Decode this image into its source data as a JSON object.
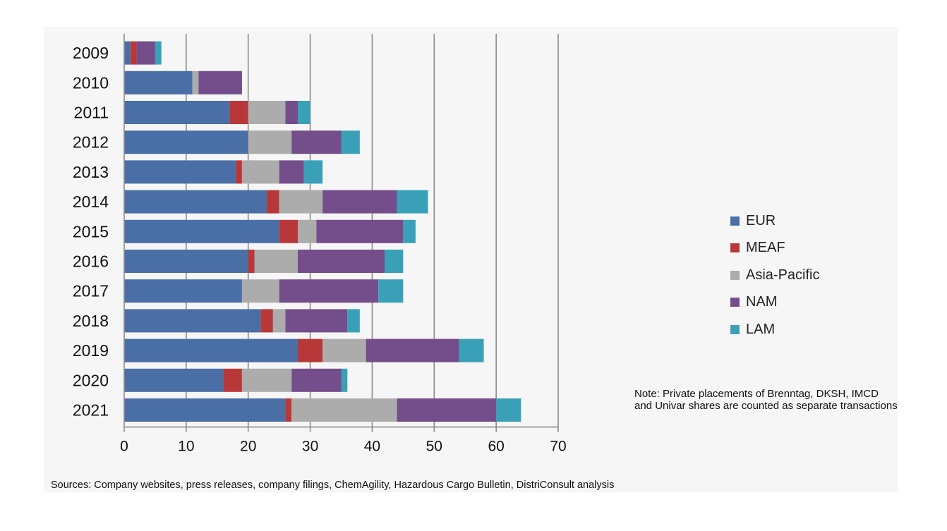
{
  "chart_data": {
    "type": "bar",
    "orientation": "horizontal",
    "stacked": true,
    "categories": [
      "2009",
      "2010",
      "2011",
      "2012",
      "2013",
      "2014",
      "2015",
      "2016",
      "2017",
      "2018",
      "2019",
      "2020",
      "2021"
    ],
    "series": [
      {
        "name": "EUR",
        "color": "#4a6fa6",
        "values": [
          1,
          11,
          17,
          20,
          18,
          23,
          25,
          20,
          19,
          22,
          28,
          16,
          26
        ]
      },
      {
        "name": "MEAF",
        "color": "#b8383a",
        "values": [
          1,
          0,
          3,
          0,
          1,
          2,
          3,
          1,
          0,
          2,
          4,
          3,
          1
        ]
      },
      {
        "name": "Asia-Pacific",
        "color": "#acacac",
        "values": [
          0,
          1,
          6,
          7,
          6,
          7,
          3,
          7,
          6,
          2,
          7,
          8,
          17
        ]
      },
      {
        "name": "NAM",
        "color": "#744e8b",
        "values": [
          3,
          7,
          2,
          8,
          4,
          12,
          14,
          14,
          16,
          10,
          15,
          8,
          16
        ]
      },
      {
        "name": "LAM",
        "color": "#3aa0b8",
        "values": [
          1,
          0,
          2,
          3,
          3,
          5,
          2,
          3,
          4,
          2,
          4,
          1,
          4
        ]
      }
    ],
    "xlim": [
      0,
      70
    ],
    "xticks": [
      0,
      10,
      20,
      30,
      40,
      50,
      60,
      70
    ],
    "grid": "vertical",
    "legend_position": "right"
  },
  "note": {
    "line1": "Note: Private placements of Brenntag, DKSH, IMCD",
    "line2": "and Univar shares are counted as separate transactions"
  },
  "sources": "Sources: Company websites, press releases, company filings, ChemAgility, Hazardous Cargo Bulletin, DistriConsult analysis"
}
